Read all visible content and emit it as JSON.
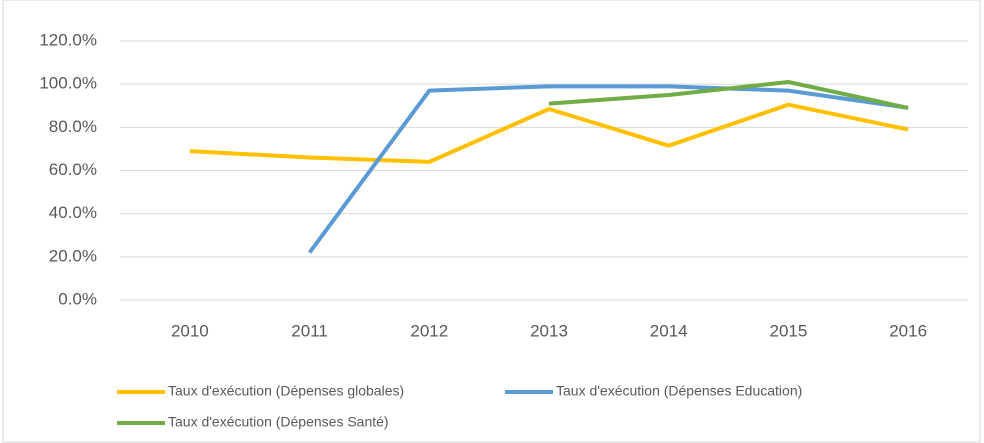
{
  "chart_data": {
    "type": "line",
    "categories": [
      "2010",
      "2011",
      "2012",
      "2013",
      "2014",
      "2015",
      "2016"
    ],
    "series": [
      {
        "name": "Taux d'exécution (Dépenses globales)",
        "color": "#FFC000",
        "values": [
          69,
          66,
          64,
          88.5,
          71.5,
          90.5,
          79
        ]
      },
      {
        "name": "Taux d'exécution (Dépenses Education)",
        "color": "#5B9BD5",
        "values": [
          null,
          22,
          97,
          99,
          99,
          97,
          89
        ]
      },
      {
        "name": "Taux d'exécution (Dépenses Santé)",
        "color": "#70AD47",
        "values": [
          null,
          null,
          null,
          91,
          95,
          101,
          89
        ]
      }
    ],
    "ylim": [
      0,
      120
    ],
    "yticks": [
      {
        "value": 0,
        "label": "0.0%"
      },
      {
        "value": 20,
        "label": "20.0%"
      },
      {
        "value": 40,
        "label": "40.0%"
      },
      {
        "value": 60,
        "label": "60.0%"
      },
      {
        "value": 80,
        "label": "80.0%"
      },
      {
        "value": 100,
        "label": "100.0%"
      },
      {
        "value": 120,
        "label": "120.0%"
      }
    ],
    "grid": true,
    "legend": "bottom"
  }
}
